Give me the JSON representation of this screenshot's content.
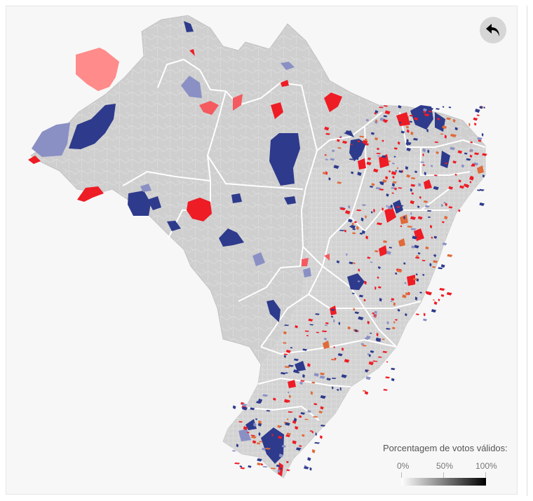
{
  "map": {
    "legend": {
      "title": "Porcentagem de votos válidos:",
      "ticks": [
        "0%",
        "50%",
        "100%"
      ],
      "gradient_start": "#ffffff",
      "gradient_end": "#000000"
    },
    "controls": {
      "back_icon": "undo-arrow-icon"
    },
    "colors": {
      "background": "#f7f7f7",
      "base_fill": "#cfcfcf",
      "border": "#ffffff",
      "red": "#ee1c25",
      "light_red": "#ff8b8b",
      "blue": "#2e3a8c",
      "light_blue": "#8a90c4",
      "orange": "#e06a3a"
    }
  }
}
